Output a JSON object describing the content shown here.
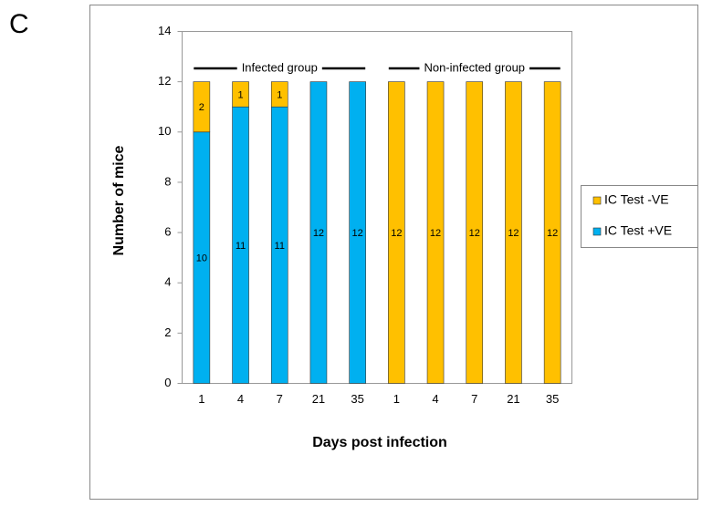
{
  "panel_label": "C",
  "chart_data": {
    "type": "stacked_bar",
    "categories": [
      "1",
      "4",
      "7",
      "21",
      "35",
      "1",
      "4",
      "7",
      "21",
      "35"
    ],
    "series": [
      {
        "name": "IC Test +VE",
        "color": "#00b0f0",
        "values": [
          10,
          11,
          11,
          12,
          12,
          0,
          0,
          0,
          0,
          0
        ]
      },
      {
        "name": "IC Test -VE",
        "color": "#ffc000",
        "values": [
          2,
          1,
          1,
          0,
          0,
          12,
          12,
          12,
          12,
          12
        ]
      }
    ],
    "ylim": [
      0,
      14
    ],
    "yticks": [
      0,
      2,
      4,
      6,
      8,
      10,
      12,
      14
    ],
    "xlabel": "Days post infection",
    "ylabel": "Number of mice",
    "annotations": [
      "Infected group",
      "Non-infected group"
    ],
    "legend": "right",
    "grid": false
  }
}
